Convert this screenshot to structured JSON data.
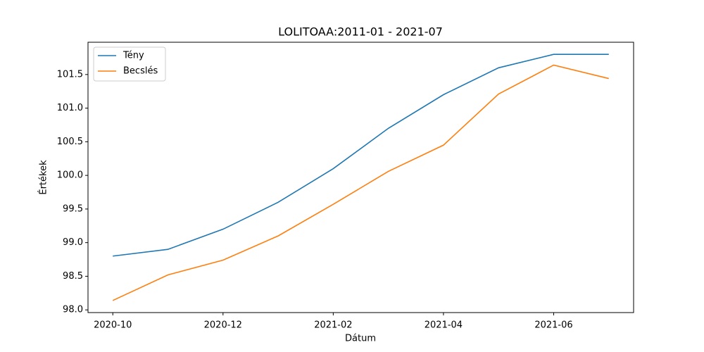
{
  "chart_data": {
    "type": "line",
    "title": "LOLITOAA:2011-01 - 2021-07",
    "x_label": "Dátum",
    "y_label": "Értékek",
    "x": [
      "2020-10",
      "2020-11",
      "2020-12",
      "2021-01",
      "2021-02",
      "2021-03",
      "2021-04",
      "2021-05",
      "2021-06",
      "2021-07"
    ],
    "series": [
      {
        "name": "Tény",
        "color": "#1f77b4",
        "values": [
          98.8,
          98.9,
          99.2,
          99.6,
          100.1,
          100.7,
          101.2,
          101.6,
          101.8,
          101.8
        ]
      },
      {
        "name": "Becslés",
        "color": "#ff7f0e",
        "values": [
          98.14,
          98.52,
          98.74,
          99.1,
          99.57,
          100.06,
          100.45,
          101.21,
          101.64,
          101.44
        ]
      }
    ],
    "xticks": [
      "2020-10",
      "2020-12",
      "2021-02",
      "2021-04",
      "2021-06"
    ],
    "ylim": [
      97.96,
      101.98
    ],
    "yticks": [
      {
        "value": 98.0,
        "label": "98.0"
      },
      {
        "value": 98.5,
        "label": "98.5"
      },
      {
        "value": 99.0,
        "label": "99.0"
      },
      {
        "value": 99.5,
        "label": "99.5"
      },
      {
        "value": 100.0,
        "label": "100.0"
      },
      {
        "value": 100.5,
        "label": "100.5"
      },
      {
        "value": 101.0,
        "label": "101.0"
      },
      {
        "value": 101.5,
        "label": "101.5"
      }
    ],
    "legend": "upper left",
    "grid": false
  }
}
